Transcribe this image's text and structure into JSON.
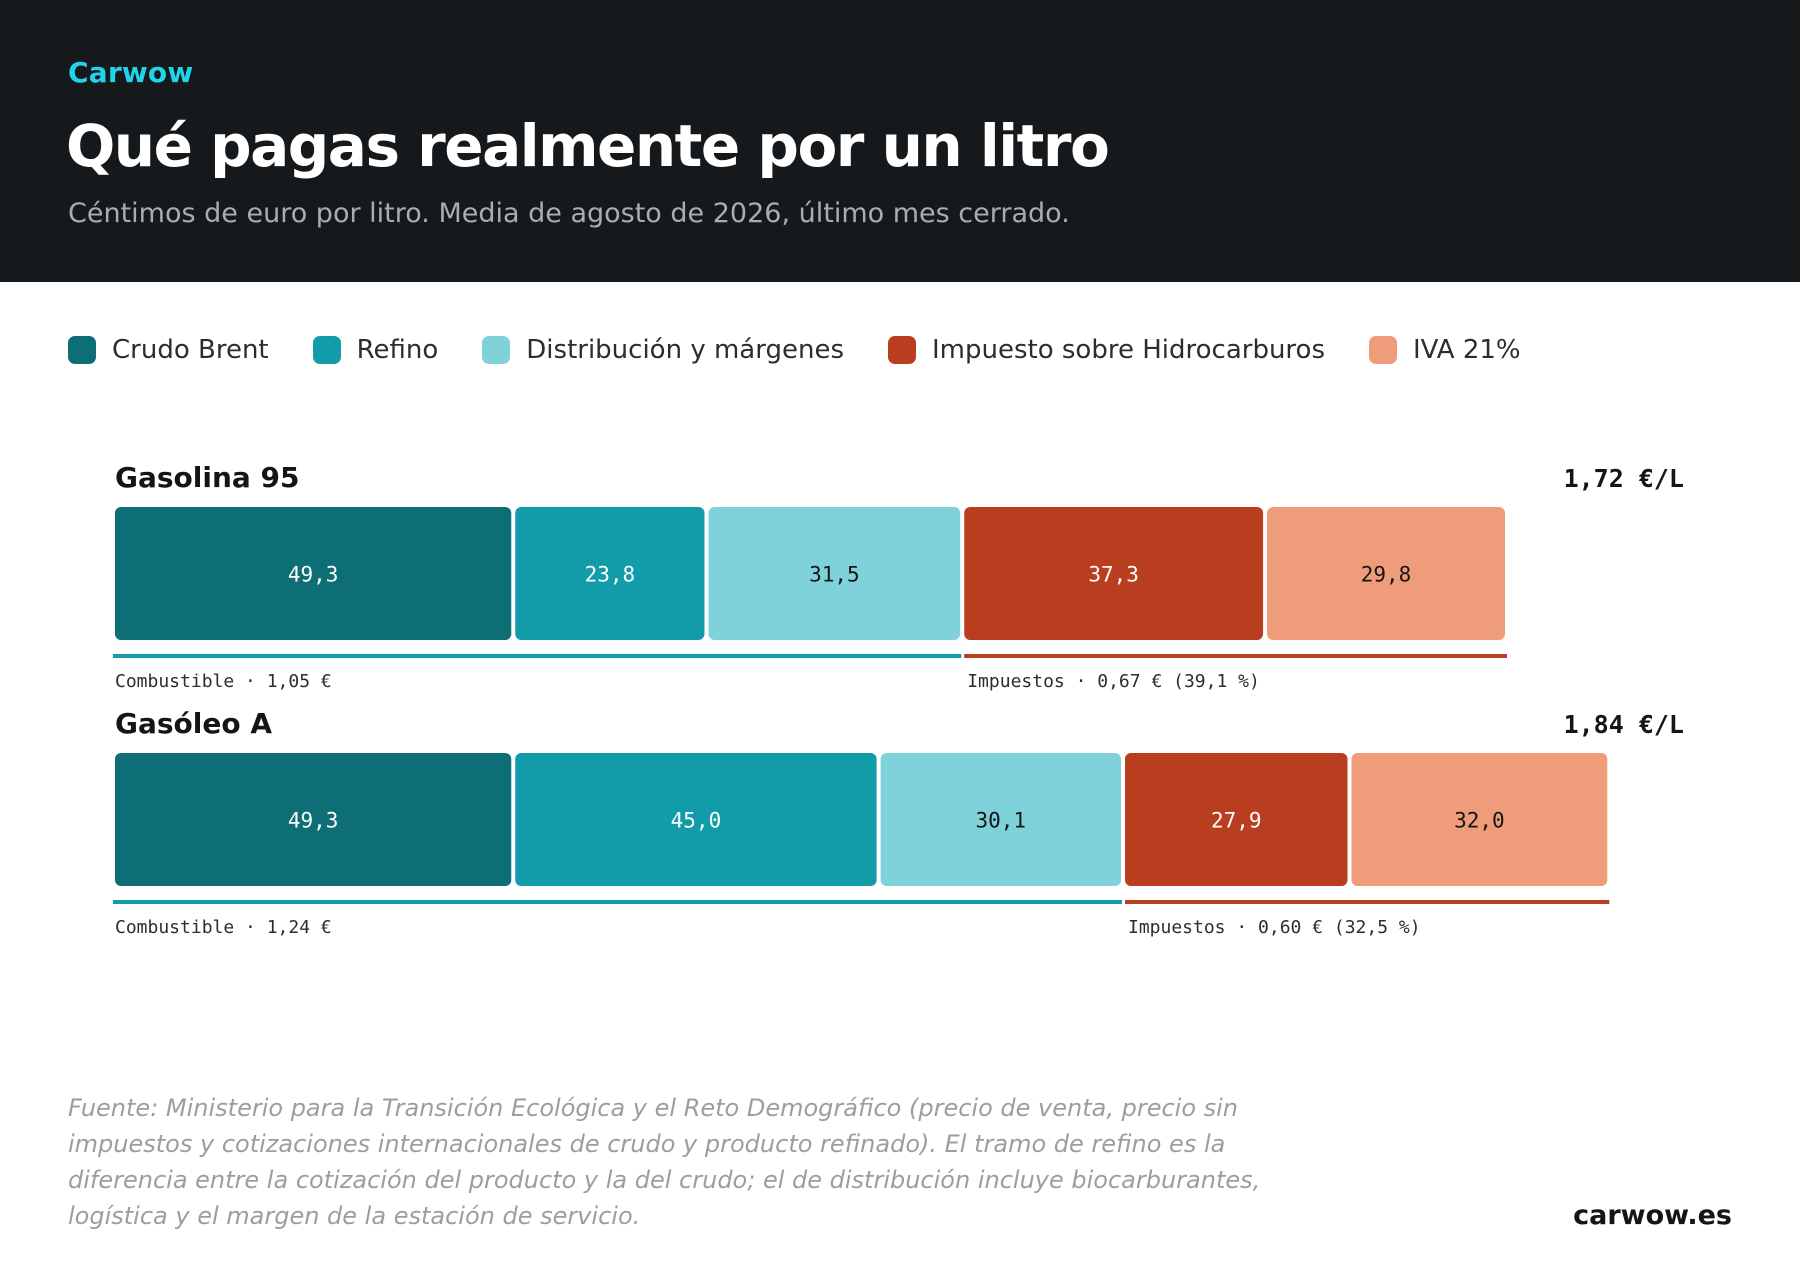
{
  "header": {
    "brand": "Carwow",
    "title": "Qué pagas realmente por un litro",
    "subtitle": "Céntimos de euro por litro. Media de agosto de 2026, último mes cerrado."
  },
  "legend": [
    {
      "label": "Crudo Brent",
      "color": "#0d6e76"
    },
    {
      "label": "Refino",
      "color": "#129ca9"
    },
    {
      "label": "Distribución y márgenes",
      "color": "#80d2da"
    },
    {
      "label": "Impuesto sobre Hidrocarburos",
      "color": "#b93d1f"
    },
    {
      "label": "IVA 21%",
      "color": "#ef9c7b"
    }
  ],
  "footer": {
    "source": "Fuente: Ministerio para la Transición Ecológica y el Reto Demográfico (precio de venta, precio sin impuestos y cotizaciones internacionales de crudo y producto refinado). El tramo de refino es la diferencia entre la cotización del producto y la del crudo; el de distribución incluye biocarburantes, logística y el margen de la estación de servicio.",
    "site": "carwow.es"
  },
  "chart_data": {
    "type": "bar",
    "orientation": "horizontal-stacked",
    "unit": "céntimos de euro por litro",
    "series_names": [
      "Crudo Brent",
      "Refino",
      "Distribución y márgenes",
      "Impuesto sobre Hidrocarburos",
      "IVA 21%"
    ],
    "colors": [
      "#0d6e76",
      "#129ca9",
      "#80d2da",
      "#b93d1f",
      "#ef9c7b"
    ],
    "label_colors": [
      "#ffffff",
      "#ffffff",
      "#151515",
      "#ffffff",
      "#151515"
    ],
    "xlim": [
      0,
      193.5
    ],
    "bars": [
      {
        "name": "Gasolina 95",
        "total_label": "1,72 €/L",
        "values": [
          49.3,
          23.8,
          31.5,
          37.3,
          29.8
        ],
        "value_labels": [
          "49,3",
          "23,8",
          "31,5",
          "37,3",
          "29,8"
        ],
        "fuel_group_label": "Combustible · 1,05 €",
        "tax_group_label": "Impuestos · 0,67 € (39,1 %)"
      },
      {
        "name": "Gasóleo A",
        "total_label": "1,84 €/L",
        "values": [
          49.3,
          45.0,
          30.1,
          27.9,
          32.0
        ],
        "value_labels": [
          "49,3",
          "45,0",
          "30,1",
          "27,9",
          "32,0"
        ],
        "fuel_group_label": "Combustible · 1,24 €",
        "tax_group_label": "Impuestos · 0,60 € (32,5 %)"
      }
    ]
  }
}
